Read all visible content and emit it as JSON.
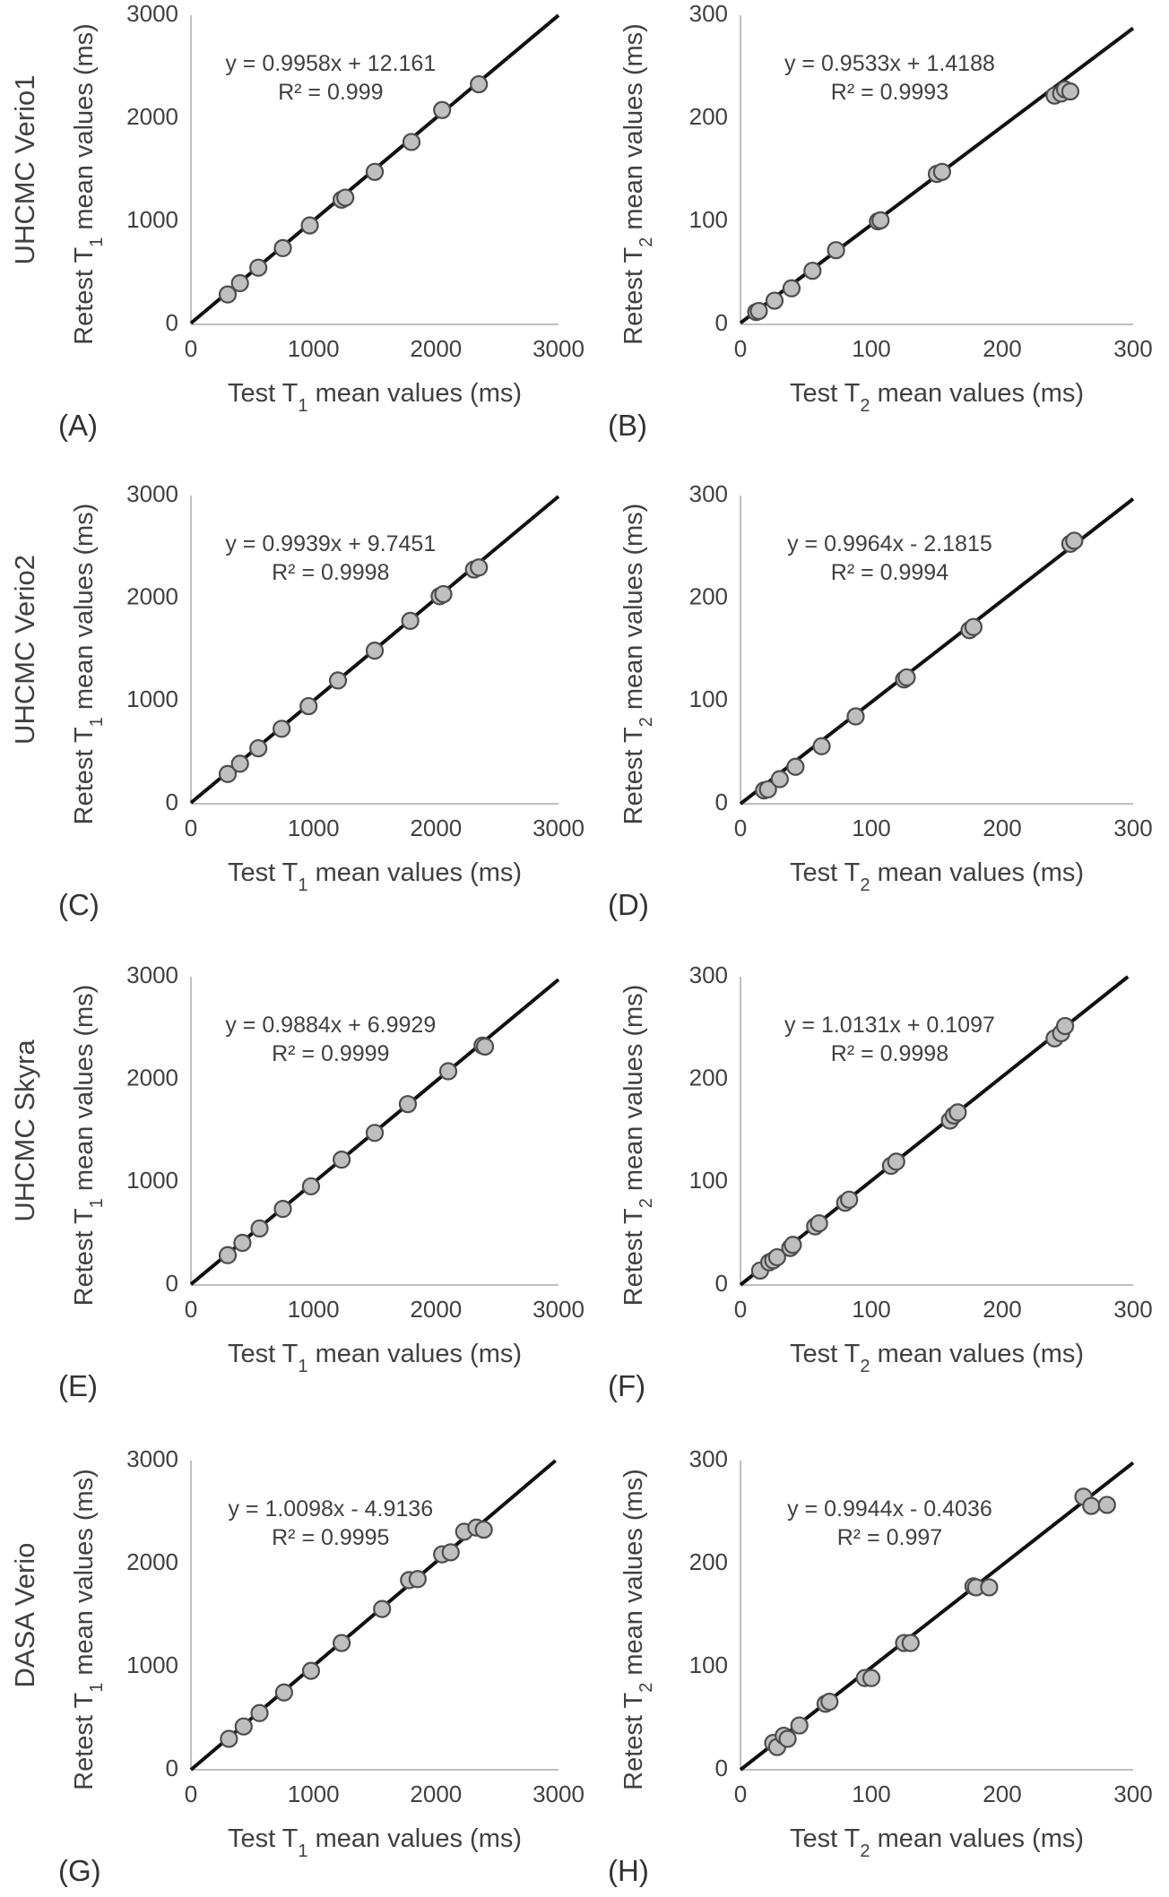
{
  "rows": [
    {
      "label": "UHCMC Verio1"
    },
    {
      "label": "UHCMC Verio2"
    },
    {
      "label": "UHCMC Skyra"
    },
    {
      "label": "DASA Verio"
    }
  ],
  "chart_data": [
    {
      "type": "scatter",
      "panel": "(A)",
      "row_label": "UHCMC Verio1",
      "xlabel": "Test T1 mean values (ms)",
      "ylabel": "Retest T1 mean values (ms)",
      "xlim": [
        0,
        3000
      ],
      "ylim": [
        0,
        3000
      ],
      "xticks": [
        "0",
        "1000",
        "2000",
        "3000"
      ],
      "yticks": [
        "0",
        "1000",
        "2000",
        "3000"
      ],
      "trendline": {
        "slope": 0.9958,
        "intercept": 12.161
      },
      "equation": "y = 0.9958x + 12.161",
      "r2": "R² = 0.999",
      "x": [
        300,
        400,
        550,
        750,
        970,
        1230,
        1260,
        1500,
        1800,
        2050,
        2350
      ],
      "y": [
        290,
        400,
        550,
        740,
        960,
        1210,
        1230,
        1480,
        1770,
        2080,
        2330
      ]
    },
    {
      "type": "scatter",
      "panel": "(B)",
      "row_label": "UHCMC Verio1",
      "xlabel": "Test T2 mean values (ms)",
      "ylabel": "Retest T2 mean values (ms)",
      "xlim": [
        0,
        300
      ],
      "ylim": [
        0,
        300
      ],
      "xticks": [
        "0",
        "100",
        "200",
        "300"
      ],
      "yticks": [
        "0",
        "100",
        "200",
        "300"
      ],
      "trendline": {
        "slope": 0.9533,
        "intercept": 1.4188
      },
      "equation": "y = 0.9533x + 1.4188",
      "r2": "R² = 0.9993",
      "x": [
        12,
        14,
        26,
        39,
        55,
        73,
        105,
        107,
        150,
        154,
        240,
        245,
        248,
        252
      ],
      "y": [
        12,
        13,
        23,
        35,
        52,
        72,
        100,
        101,
        146,
        148,
        222,
        224,
        228,
        226
      ]
    },
    {
      "type": "scatter",
      "panel": "(C)",
      "row_label": "UHCMC Verio2",
      "xlabel": "Test T1 mean values (ms)",
      "ylabel": "Retest T1 mean values (ms)",
      "xlim": [
        0,
        3000
      ],
      "ylim": [
        0,
        3000
      ],
      "xticks": [
        "0",
        "1000",
        "2000",
        "3000"
      ],
      "yticks": [
        "0",
        "1000",
        "2000",
        "3000"
      ],
      "trendline": {
        "slope": 0.9939,
        "intercept": 9.7451
      },
      "equation": "y = 0.9939x + 9.7451",
      "r2": "R² = 0.9998",
      "x": [
        300,
        400,
        550,
        740,
        960,
        1200,
        1500,
        1790,
        2030,
        2060,
        2310,
        2350
      ],
      "y": [
        290,
        390,
        540,
        730,
        950,
        1200,
        1490,
        1780,
        2020,
        2040,
        2280,
        2300
      ]
    },
    {
      "type": "scatter",
      "panel": "(D)",
      "row_label": "UHCMC Verio2",
      "xlabel": "Test T2 mean values (ms)",
      "ylabel": "Retest T2 mean values (ms)",
      "xlim": [
        0,
        300
      ],
      "ylim": [
        0,
        300
      ],
      "xticks": [
        "0",
        "100",
        "200",
        "300"
      ],
      "yticks": [
        "0",
        "100",
        "200",
        "300"
      ],
      "trendline": {
        "slope": 0.9964,
        "intercept": -2.1815
      },
      "equation": "y = 0.9964x - 2.1815",
      "r2": "R² = 0.9994",
      "x": [
        18,
        21,
        30,
        42,
        62,
        88,
        125,
        127,
        175,
        178,
        252,
        255
      ],
      "y": [
        13,
        14,
        24,
        36,
        56,
        85,
        121,
        123,
        169,
        172,
        253,
        256
      ]
    },
    {
      "type": "scatter",
      "panel": "(E)",
      "row_label": "UHCMC Skyra",
      "xlabel": "Test T1 mean values (ms)",
      "ylabel": "Retest T1 mean values (ms)",
      "xlim": [
        0,
        3000
      ],
      "ylim": [
        0,
        3000
      ],
      "xticks": [
        "0",
        "1000",
        "2000",
        "3000"
      ],
      "yticks": [
        "0",
        "1000",
        "2000",
        "3000"
      ],
      "trendline": {
        "slope": 0.9884,
        "intercept": 6.9929
      },
      "equation": "y = 0.9884x + 6.9929",
      "r2": "R² = 0.9999",
      "x": [
        300,
        420,
        560,
        750,
        980,
        1230,
        1500,
        1770,
        2100,
        2380,
        2400
      ],
      "y": [
        290,
        410,
        550,
        740,
        960,
        1220,
        1480,
        1760,
        2080,
        2330,
        2320
      ]
    },
    {
      "type": "scatter",
      "panel": "(F)",
      "row_label": "UHCMC Skyra",
      "xlabel": "Test T2 mean values (ms)",
      "ylabel": "Retest T2 mean values (ms)",
      "xlim": [
        0,
        300
      ],
      "ylim": [
        0,
        300
      ],
      "xticks": [
        "0",
        "100",
        "200",
        "300"
      ],
      "yticks": [
        "0",
        "100",
        "200",
        "300"
      ],
      "trendline": {
        "slope": 1.0131,
        "intercept": 0.1097
      },
      "equation": "y = 1.0131x + 0.1097",
      "r2": "R² = 0.9998",
      "x": [
        15,
        22,
        25,
        28,
        38,
        40,
        57,
        60,
        80,
        83,
        115,
        119,
        160,
        163,
        166,
        240,
        245,
        248
      ],
      "y": [
        14,
        22,
        24,
        27,
        36,
        39,
        57,
        60,
        80,
        83,
        116,
        120,
        160,
        165,
        168,
        240,
        245,
        252
      ]
    },
    {
      "type": "scatter",
      "panel": "(G)",
      "row_label": "DASA Verio",
      "xlabel": "Test T1 mean values (ms)",
      "ylabel": "Retest T1 mean values (ms)",
      "xlim": [
        0,
        3000
      ],
      "ylim": [
        0,
        3000
      ],
      "xticks": [
        "0",
        "1000",
        "2000",
        "3000"
      ],
      "yticks": [
        "0",
        "1000",
        "2000",
        "3000"
      ],
      "trendline": {
        "slope": 1.0098,
        "intercept": -4.9136
      },
      "equation": "y = 1.0098x - 4.9136",
      "r2": "R² = 0.9995",
      "x": [
        310,
        430,
        560,
        760,
        980,
        1230,
        1560,
        1780,
        1850,
        2050,
        2120,
        2230,
        2330,
        2390
      ],
      "y": [
        300,
        420,
        550,
        750,
        960,
        1230,
        1560,
        1840,
        1850,
        2090,
        2110,
        2310,
        2350,
        2330
      ]
    },
    {
      "type": "scatter",
      "panel": "(H)",
      "row_label": "DASA Verio",
      "xlabel": "Test T2 mean values (ms)",
      "ylabel": "Retest T2 mean values (ms)",
      "xlim": [
        0,
        300
      ],
      "ylim": [
        0,
        300
      ],
      "xticks": [
        "0",
        "100",
        "200",
        "300"
      ],
      "yticks": [
        "0",
        "100",
        "200",
        "300"
      ],
      "trendline": {
        "slope": 0.9944,
        "intercept": -0.4036
      },
      "equation": "y = 0.9944x - 0.4036",
      "r2": "R² = 0.997",
      "x": [
        25,
        28,
        33,
        36,
        45,
        65,
        68,
        95,
        100,
        125,
        130,
        178,
        180,
        190,
        262,
        268,
        280
      ],
      "y": [
        26,
        22,
        33,
        30,
        43,
        64,
        66,
        89,
        89,
        123,
        123,
        178,
        177,
        177,
        265,
        256,
        257
      ]
    }
  ]
}
